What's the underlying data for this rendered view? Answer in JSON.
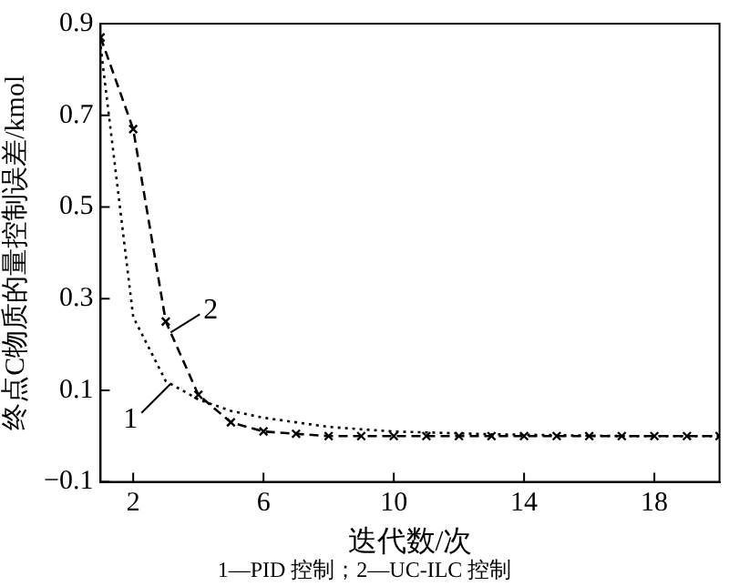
{
  "chart_data": {
    "type": "line",
    "xlabel": "迭代数/次",
    "ylabel": "终点C物质的量控制误差/kmol",
    "x": [
      1,
      2,
      3,
      4,
      5,
      6,
      7,
      8,
      9,
      10,
      11,
      12,
      13,
      14,
      15,
      16,
      17,
      18,
      19,
      20
    ],
    "series": [
      {
        "name": "1",
        "color": "#000000",
        "line_style": "dotted",
        "marker": "none",
        "values": [
          0.85,
          0.26,
          0.12,
          0.08,
          0.055,
          0.04,
          0.03,
          0.02,
          0.015,
          0.01,
          0.008,
          0.006,
          0.004,
          0.003,
          0.002,
          0.001,
          0,
          0,
          0,
          0
        ]
      },
      {
        "name": "2",
        "color": "#000000",
        "line_style": "dashed",
        "marker": "cross",
        "values": [
          0.87,
          0.67,
          0.25,
          0.09,
          0.03,
          0.01,
          0.005,
          0,
          0,
          0,
          0,
          0,
          0,
          0,
          0,
          0,
          0,
          0,
          0,
          0
        ]
      }
    ],
    "xlim": [
      1,
      20
    ],
    "xticks": [
      2,
      6,
      10,
      14,
      18
    ],
    "ylim": [
      -0.1,
      0.9
    ],
    "yticks": [
      -0.1,
      0.1,
      0.3,
      0.5,
      0.7,
      0.9
    ],
    "grid": false,
    "annotations": [
      "1—PID 控制；2—UC-ILC 控制"
    ]
  }
}
